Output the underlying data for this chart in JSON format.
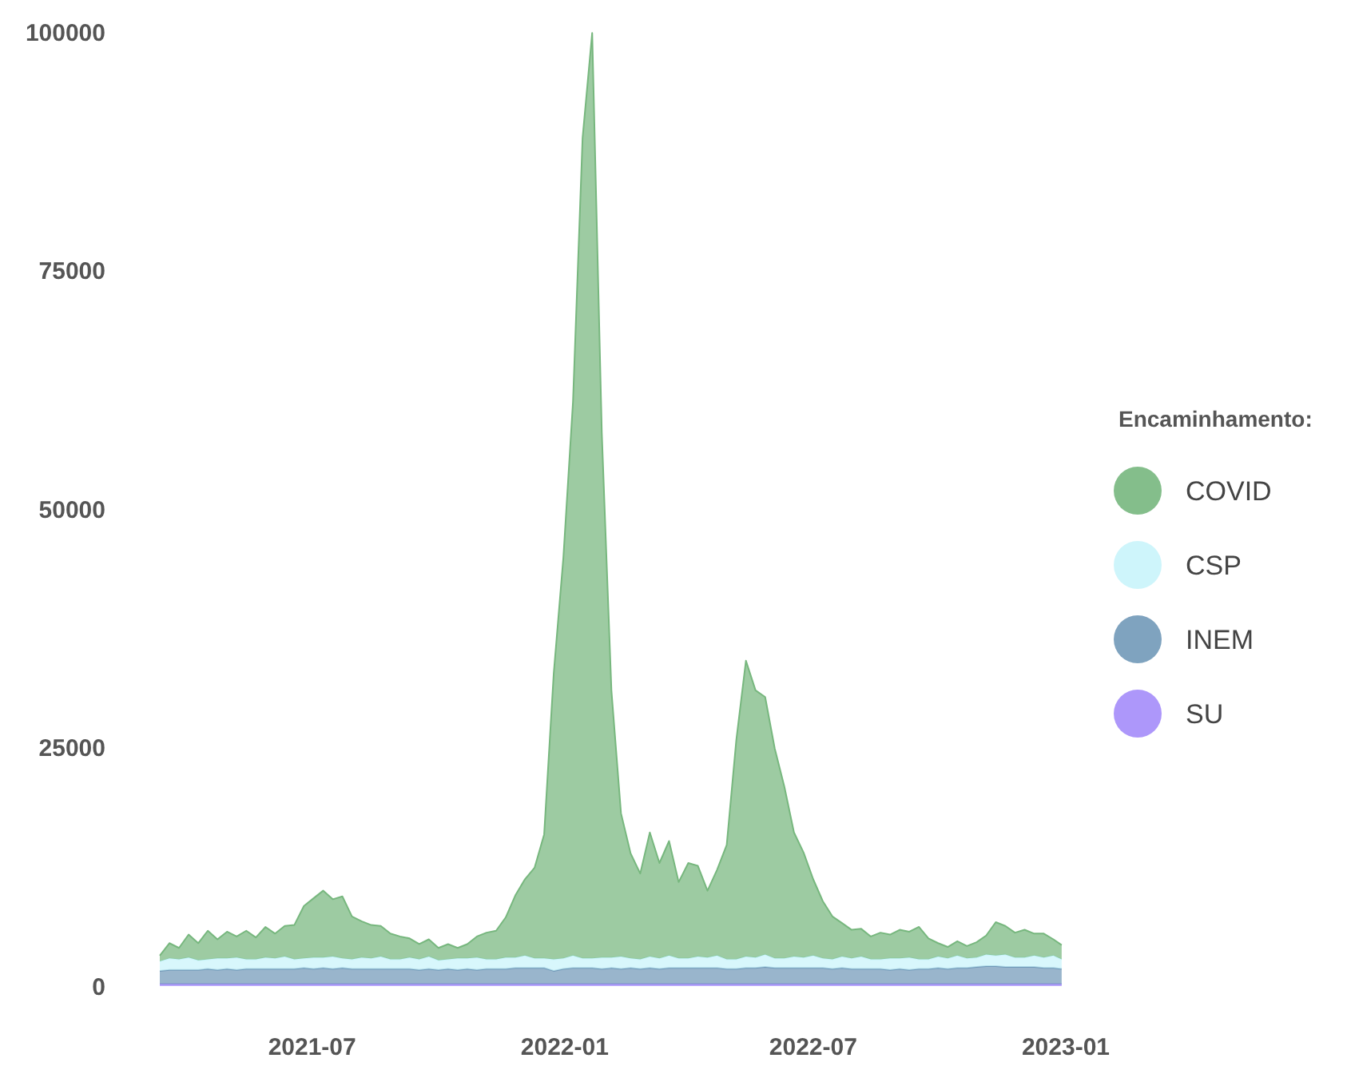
{
  "chart_data": {
    "type": "area",
    "stacked": true,
    "legend_title": "Encaminhamento:",
    "legend": "right",
    "grid": false,
    "x": [
      "2021-03-12",
      "2021-03-19",
      "2021-03-26",
      "2021-04-02",
      "2021-04-09",
      "2021-04-16",
      "2021-04-23",
      "2021-04-30",
      "2021-05-07",
      "2021-05-14",
      "2021-05-21",
      "2021-05-28",
      "2021-06-04",
      "2021-06-11",
      "2021-06-18",
      "2021-06-25",
      "2021-07-02",
      "2021-07-09",
      "2021-07-16",
      "2021-07-23",
      "2021-07-30",
      "2021-08-06",
      "2021-08-13",
      "2021-08-20",
      "2021-08-27",
      "2021-09-03",
      "2021-09-10",
      "2021-09-17",
      "2021-09-24",
      "2021-10-01",
      "2021-10-08",
      "2021-10-15",
      "2021-10-22",
      "2021-10-29",
      "2021-11-05",
      "2021-11-12",
      "2021-11-19",
      "2021-11-26",
      "2021-12-03",
      "2021-12-10",
      "2021-12-17",
      "2021-12-24",
      "2021-12-31",
      "2022-01-07",
      "2022-01-14",
      "2022-01-21",
      "2022-01-28",
      "2022-02-04",
      "2022-02-11",
      "2022-02-18",
      "2022-02-25",
      "2022-03-04",
      "2022-03-11",
      "2022-03-18",
      "2022-03-25",
      "2022-04-01",
      "2022-04-08",
      "2022-04-15",
      "2022-04-22",
      "2022-04-29",
      "2022-05-06",
      "2022-05-13",
      "2022-05-20",
      "2022-05-27",
      "2022-06-03",
      "2022-06-10",
      "2022-06-17",
      "2022-06-24",
      "2022-07-01",
      "2022-07-08",
      "2022-07-15",
      "2022-07-22",
      "2022-07-29",
      "2022-08-05",
      "2022-08-12",
      "2022-08-19",
      "2022-08-26",
      "2022-09-02",
      "2022-09-09",
      "2022-09-16",
      "2022-09-23",
      "2022-09-30",
      "2022-10-07",
      "2022-10-14",
      "2022-10-21",
      "2022-10-28",
      "2022-11-04",
      "2022-11-11",
      "2022-11-18",
      "2022-11-25",
      "2022-12-02",
      "2022-12-09",
      "2022-12-16",
      "2022-12-23",
      "2022-12-29"
    ],
    "xlim": [
      "2021-03-12",
      "2023-01-01"
    ],
    "xticks": [
      "2021-07",
      "2022-01",
      "2022-07",
      "2023-01"
    ],
    "ylim": [
      0,
      100000
    ],
    "yticks": [
      0,
      25000,
      50000,
      75000,
      100000
    ],
    "series": [
      {
        "name": "SU",
        "color": "#a48cf9",
        "values": [
          200,
          200,
          200,
          200,
          200,
          200,
          200,
          200,
          200,
          200,
          200,
          200,
          200,
          200,
          200,
          200,
          200,
          200,
          200,
          200,
          200,
          200,
          200,
          200,
          200,
          200,
          200,
          200,
          200,
          200,
          200,
          200,
          200,
          200,
          200,
          200,
          200,
          200,
          200,
          200,
          200,
          200,
          200,
          200,
          200,
          200,
          200,
          200,
          200,
          200,
          200,
          200,
          200,
          200,
          200,
          200,
          200,
          200,
          200,
          200,
          200,
          200,
          200,
          200,
          200,
          200,
          200,
          200,
          200,
          200,
          200,
          200,
          200,
          200,
          200,
          200,
          200,
          200,
          200,
          200,
          200,
          200,
          200,
          200,
          200,
          200,
          200,
          200,
          200,
          200,
          200,
          200,
          200,
          200,
          200
        ]
      },
      {
        "name": "INEM",
        "color": "#7199b8",
        "values": [
          1400,
          1500,
          1500,
          1500,
          1500,
          1600,
          1500,
          1600,
          1500,
          1600,
          1600,
          1600,
          1600,
          1600,
          1600,
          1700,
          1600,
          1700,
          1600,
          1700,
          1600,
          1600,
          1600,
          1600,
          1600,
          1600,
          1600,
          1500,
          1600,
          1500,
          1600,
          1500,
          1600,
          1500,
          1600,
          1600,
          1600,
          1700,
          1700,
          1700,
          1700,
          1400,
          1600,
          1700,
          1700,
          1700,
          1600,
          1700,
          1600,
          1700,
          1600,
          1700,
          1600,
          1700,
          1700,
          1700,
          1700,
          1700,
          1700,
          1600,
          1600,
          1700,
          1700,
          1800,
          1700,
          1700,
          1700,
          1700,
          1700,
          1700,
          1600,
          1700,
          1600,
          1600,
          1600,
          1600,
          1500,
          1600,
          1500,
          1600,
          1600,
          1700,
          1600,
          1700,
          1700,
          1800,
          1900,
          1900,
          1800,
          1800,
          1800,
          1800,
          1700,
          1700,
          1600
        ]
      },
      {
        "name": "CSP",
        "color": "#c9f4fb",
        "values": [
          1000,
          1200,
          1100,
          1300,
          1000,
          1000,
          1200,
          1100,
          1300,
          1000,
          1000,
          1200,
          1100,
          1300,
          1000,
          1000,
          1200,
          1100,
          1300,
          1000,
          1000,
          1200,
          1100,
          1300,
          1000,
          1000,
          1200,
          1100,
          1300,
          1000,
          1000,
          1200,
          1100,
          1300,
          1000,
          1000,
          1200,
          1100,
          1300,
          1000,
          1000,
          1200,
          1100,
          1300,
          1000,
          1000,
          1200,
          1100,
          1300,
          1000,
          1000,
          1200,
          1100,
          1300,
          1000,
          1000,
          1200,
          1100,
          1300,
          1000,
          1000,
          1200,
          1100,
          1300,
          1000,
          1000,
          1200,
          1100,
          1300,
          1000,
          1000,
          1200,
          1100,
          1300,
          1000,
          1000,
          1200,
          1100,
          1300,
          1000,
          1000,
          1200,
          1100,
          1300,
          1000,
          1000,
          1200,
          1100,
          1300,
          1000,
          1000,
          1200,
          1100,
          1300,
          1000
        ]
      },
      {
        "name": "COVID",
        "color": "#77b77e",
        "values": [
          600,
          1600,
          1200,
          2400,
          1800,
          3000,
          2000,
          2800,
          2200,
          3000,
          2300,
          3200,
          2600,
          3200,
          3600,
          5500,
          6200,
          7000,
          6000,
          6500,
          4500,
          3800,
          3500,
          3200,
          2700,
          2400,
          2000,
          1600,
          1800,
          1300,
          1600,
          1100,
          1500,
          2200,
          2800,
          3000,
          4200,
          6500,
          8000,
          9500,
          13000,
          30000,
          42000,
          58000,
          86000,
          97000,
          55000,
          28000,
          15000,
          11000,
          9000,
          13000,
          10000,
          12000,
          8000,
          10000,
          9500,
          7000,
          9000,
          12000,
          23000,
          31000,
          28000,
          27000,
          22000,
          18000,
          13000,
          11000,
          8000,
          6000,
          4500,
          3500,
          3000,
          2900,
          2400,
          2800,
          2500,
          3000,
          2700,
          3400,
          2200,
          1400,
          1200,
          1500,
          1300,
          1600,
          2000,
          3500,
          3000,
          2600,
          2900,
          2300,
          2500,
          1700,
          1500
        ]
      }
    ]
  }
}
